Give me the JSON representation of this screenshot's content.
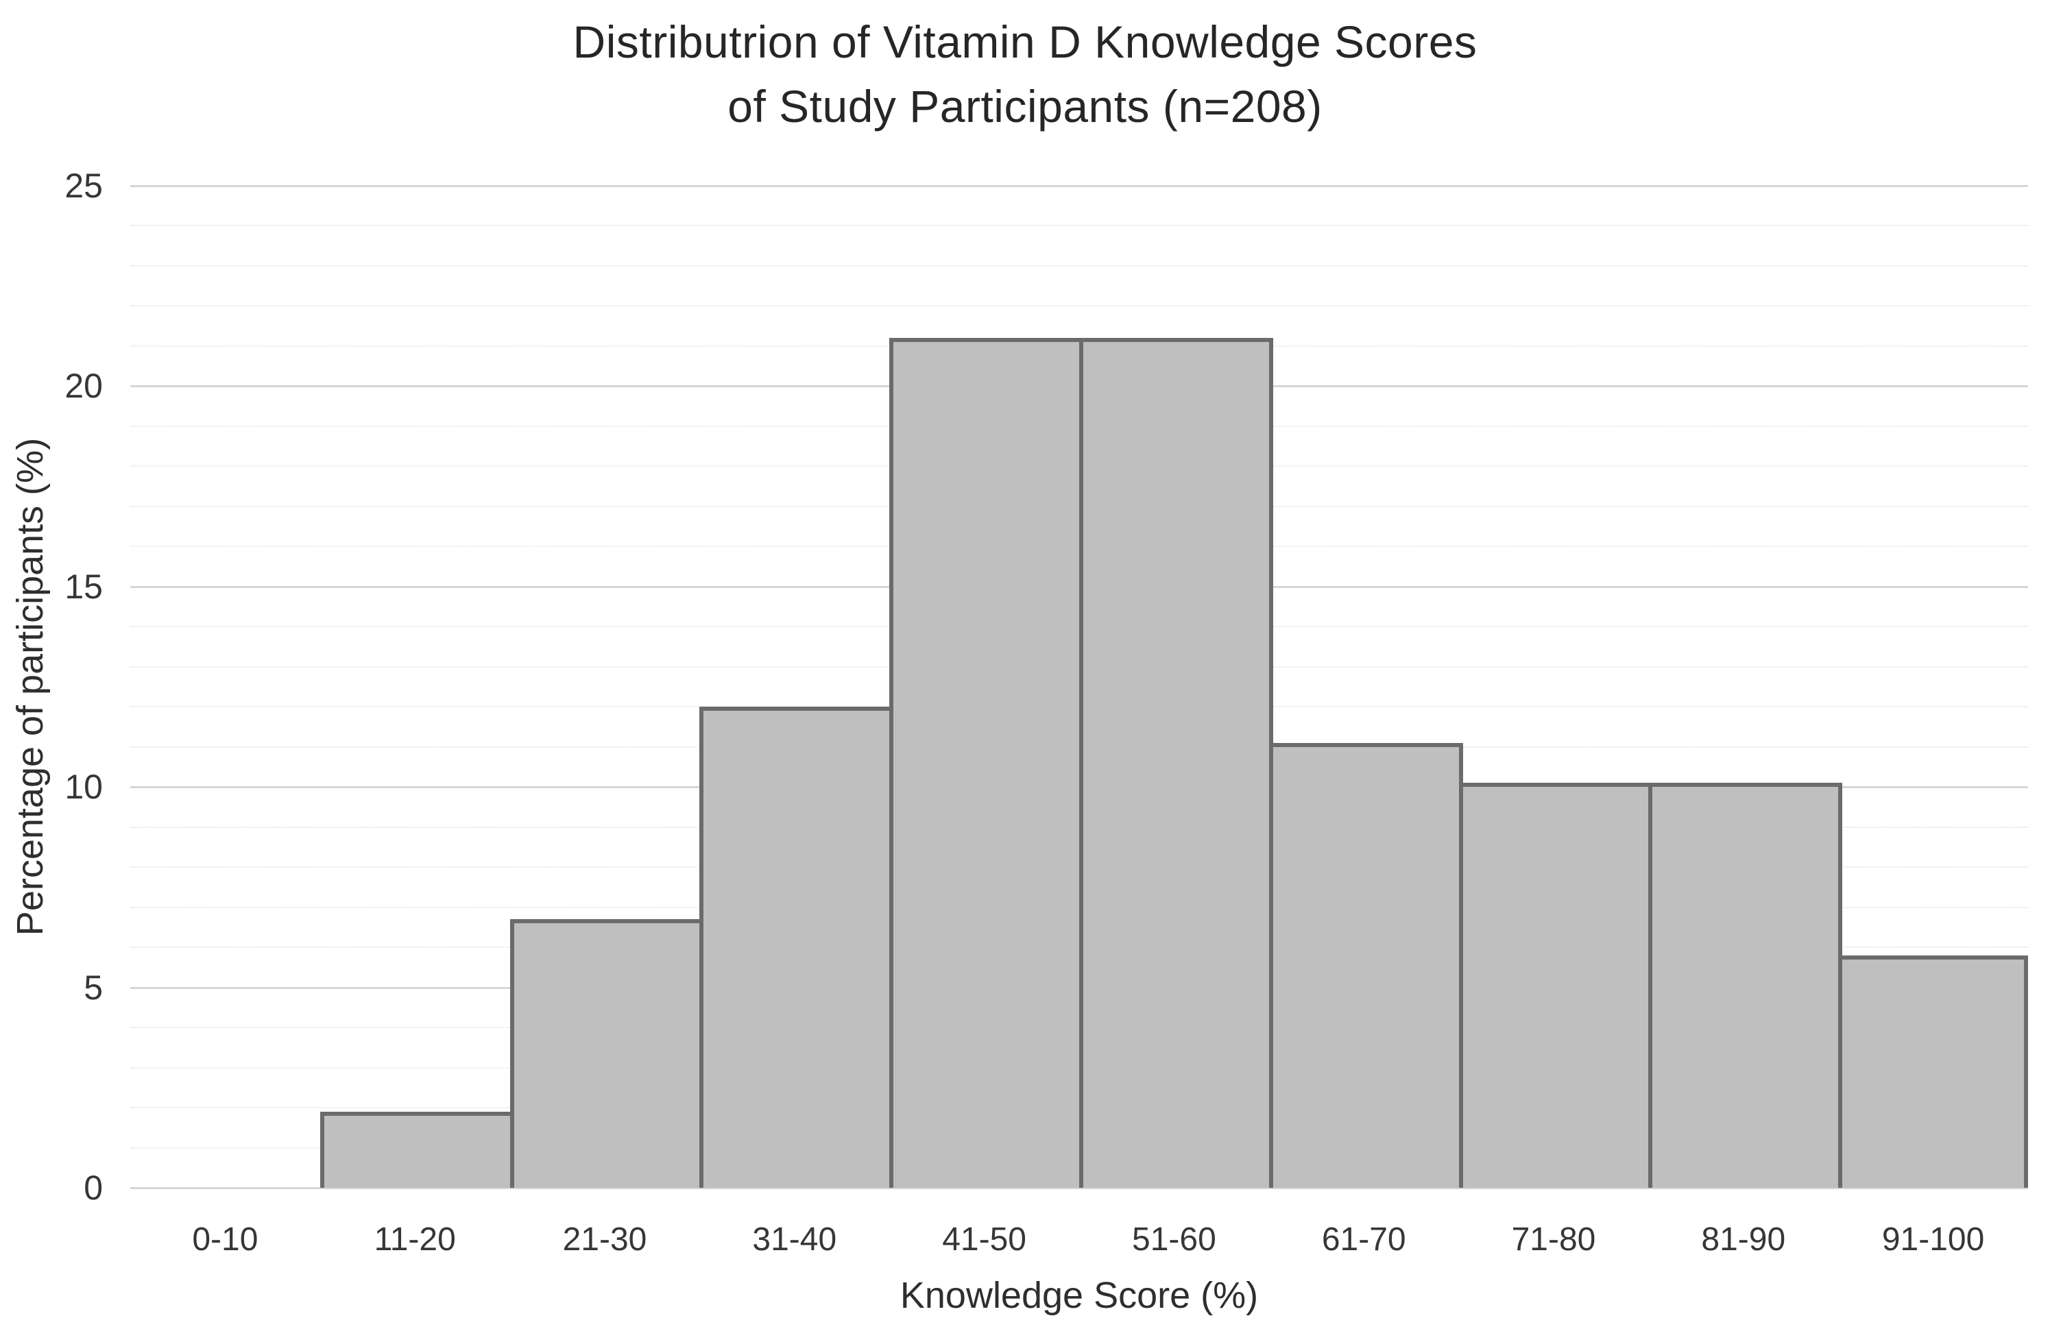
{
  "title": {
    "line1": "Distributrion of Vitamin D Knowledge Scores",
    "line2": "of Study Participants (n=208)"
  },
  "chart_data": {
    "type": "bar",
    "subtype": "histogram",
    "title": "Distributrion of Vitamin D Knowledge Scores of Study Participants (n=208)",
    "n": 208,
    "categories": [
      "0-10",
      "11-20",
      "21-30",
      "31-40",
      "41-50",
      "51-60",
      "61-70",
      "71-80",
      "81-90",
      "91-100"
    ],
    "values": [
      0,
      1.9,
      6.7,
      12.0,
      21.2,
      21.2,
      11.1,
      10.1,
      10.1,
      5.8
    ],
    "xlabel": "Knowledge Score (%)",
    "ylabel": "Percentage of participants (%)",
    "ylim": [
      0,
      25
    ],
    "yticks": [
      0,
      5,
      10,
      15,
      20,
      25
    ],
    "minor_grid_step": 1,
    "major_grid_step": 5,
    "grid": true,
    "legend": false,
    "bar_fill_color": "#bfbfbf",
    "bar_border_color": "#6b6b6b",
    "major_grid_color": "#d6d6d6",
    "minor_grid_color": "#e7e7e7",
    "text_color": "#262626"
  }
}
